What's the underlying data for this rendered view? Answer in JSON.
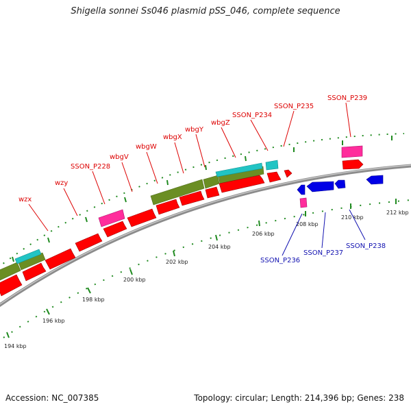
{
  "title": "Shigella sonnei Ss046 plasmid pSS_046, complete sequence",
  "footer": {
    "accession": "Accession: NC_007385",
    "summary": "Topology: circular; Length: 214,396 bp; Genes: 238"
  },
  "colors": {
    "backbone": "#8c8c8c",
    "forward_cds": "#ff0000",
    "reverse_cds": "#0000e6",
    "olive_feature": "#6b8e23",
    "cyan_feature": "#22c4c4",
    "pink_feature": "#ff2d9c",
    "tick": "#1f8a1f",
    "label_forward": "#dd0000",
    "label_reverse": "#1010b0"
  },
  "scale_labels": [
    "194 kbp",
    "196 kbp",
    "198 kbp",
    "200 kbp",
    "202 kbp",
    "204 kbp",
    "206 kbp",
    "208 kbp",
    "210 kbp",
    "212 kbp"
  ],
  "forward_gene_labels": [
    "wzx",
    "wzy",
    "SSON_P228",
    "wbgV",
    "wbgW",
    "wbgX",
    "wbgY",
    "wbgZ",
    "SSON_P234",
    "SSON_P235",
    "SSON_P239"
  ],
  "reverse_gene_labels": [
    "SSON_P236",
    "SSON_P237",
    "SSON_P238"
  ]
}
